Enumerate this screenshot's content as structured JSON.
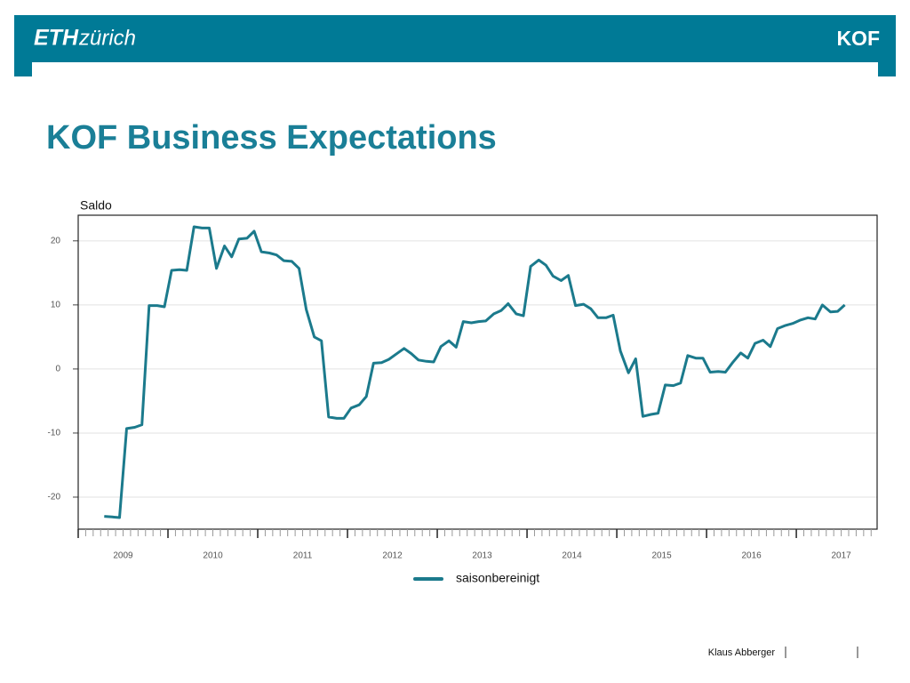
{
  "header": {
    "brand": "ETH",
    "brand_sub": "zürich",
    "unit": "KOF"
  },
  "chart_data": {
    "type": "line",
    "title": "KOF Business Expectations",
    "y_label": "Saldo",
    "x": [
      2009.29,
      2009.38,
      2009.46,
      2009.54,
      2009.63,
      2009.71,
      2009.79,
      2009.88,
      2009.96,
      2010.04,
      2010.13,
      2010.21,
      2010.29,
      2010.38,
      2010.46,
      2010.54,
      2010.63,
      2010.71,
      2010.79,
      2010.88,
      2010.96,
      2011.04,
      2011.13,
      2011.21,
      2011.29,
      2011.38,
      2011.46,
      2011.54,
      2011.63,
      2011.71,
      2011.79,
      2011.88,
      2011.96,
      2012.04,
      2012.13,
      2012.21,
      2012.29,
      2012.38,
      2012.46,
      2012.54,
      2012.63,
      2012.71,
      2012.79,
      2012.88,
      2012.96,
      2013.04,
      2013.13,
      2013.21,
      2013.29,
      2013.38,
      2013.46,
      2013.54,
      2013.63,
      2013.71,
      2013.79,
      2013.88,
      2013.96,
      2014.04,
      2014.13,
      2014.21,
      2014.29,
      2014.38,
      2014.46,
      2014.54,
      2014.63,
      2014.71,
      2014.79,
      2014.88,
      2014.96,
      2015.04,
      2015.13,
      2015.21,
      2015.29,
      2015.38,
      2015.46,
      2015.54,
      2015.63,
      2015.71,
      2015.79,
      2015.88,
      2015.96,
      2016.04,
      2016.13,
      2016.21,
      2016.29,
      2016.38,
      2016.46,
      2016.54,
      2016.63,
      2016.71,
      2016.79,
      2016.88,
      2016.96,
      2017.04,
      2017.13,
      2017.21,
      2017.29,
      2017.38,
      2017.46,
      2017.54
    ],
    "series": [
      {
        "name": "saisonbereinigt",
        "color": "#1b7a8c",
        "values": [
          -23.0,
          -23.1,
          -23.2,
          -9.3,
          -9.1,
          -8.7,
          9.9,
          9.9,
          9.7,
          15.4,
          15.5,
          15.4,
          22.2,
          22.0,
          22.0,
          15.7,
          19.2,
          17.5,
          20.3,
          20.4,
          21.5,
          18.3,
          18.1,
          17.8,
          16.9,
          16.8,
          15.7,
          9.3,
          5.0,
          4.4,
          -7.5,
          -7.7,
          -7.7,
          -6.1,
          -5.6,
          -4.3,
          0.9,
          1.0,
          1.5,
          2.3,
          3.2,
          2.4,
          1.4,
          1.2,
          1.1,
          3.5,
          4.4,
          3.4,
          7.4,
          7.2,
          7.4,
          7.5,
          8.6,
          9.1,
          10.2,
          8.6,
          8.3,
          16.0,
          17.0,
          16.2,
          14.5,
          13.8,
          14.6,
          9.9,
          10.1,
          9.4,
          8.0,
          8.0,
          8.4,
          2.8,
          -0.6,
          1.6,
          -7.4,
          -7.1,
          -6.9,
          -2.5,
          -2.6,
          -2.2,
          2.1,
          1.7,
          1.7,
          -0.5,
          -0.4,
          -0.5,
          1.0,
          2.5,
          1.7,
          4.0,
          4.5,
          3.5,
          6.3,
          6.8,
          7.1,
          7.6,
          8.0,
          7.8,
          10.0,
          8.9,
          9.0,
          10.0
        ]
      }
    ],
    "xlim": [
      2009,
      2017.9
    ],
    "xticks": [
      {
        "value": 2009.5,
        "label": "2009"
      },
      {
        "value": 2010.5,
        "label": "2010"
      },
      {
        "value": 2011.5,
        "label": "2011"
      },
      {
        "value": 2012.5,
        "label": "2012"
      },
      {
        "value": 2013.5,
        "label": "2013"
      },
      {
        "value": 2014.5,
        "label": "2014"
      },
      {
        "value": 2015.5,
        "label": "2015"
      },
      {
        "value": 2016.5,
        "label": "2016"
      },
      {
        "value": 2017.5,
        "label": "2017"
      }
    ],
    "ylim": [
      -25,
      24
    ],
    "yticks": [
      20,
      10,
      0,
      -10,
      -20
    ],
    "grid": true
  },
  "footer": {
    "author": "Klaus Abberger"
  }
}
